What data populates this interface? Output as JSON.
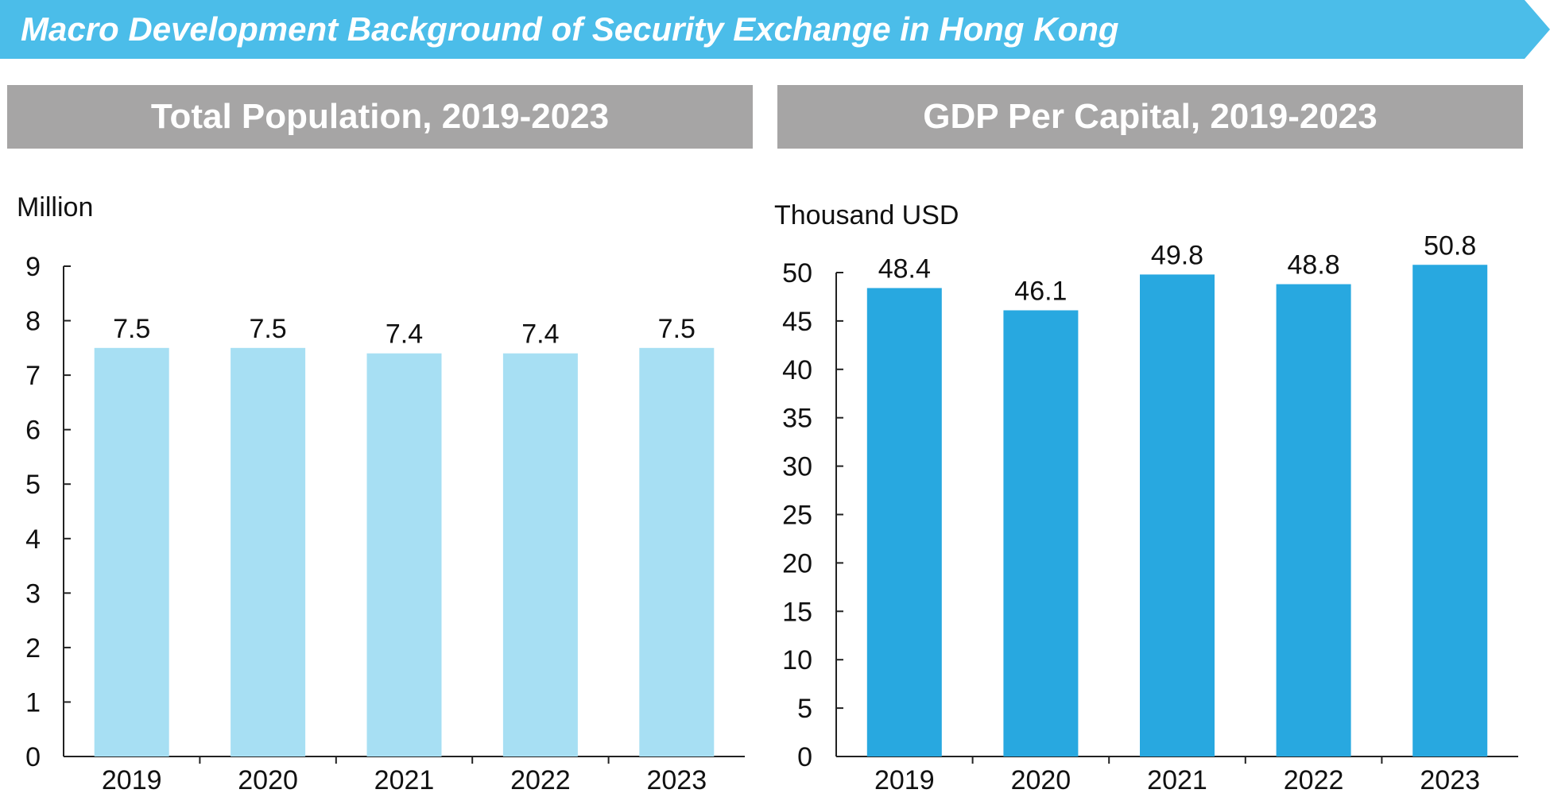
{
  "header": {
    "title": "Macro Development Background of Security Exchange in Hong Kong",
    "color": "#4bbde9"
  },
  "panels": {
    "left_title": "Total Population, 2019-2023",
    "right_title": "GDP Per Capital, 2019-2023",
    "header_color": "#a6a5a5"
  },
  "chart_data": [
    {
      "type": "bar",
      "title": "Total Population, 2019-2023",
      "ylabel": "Million",
      "xlabel": "",
      "categories": [
        "2019",
        "2020",
        "2021",
        "2022",
        "2023"
      ],
      "values": [
        7.5,
        7.5,
        7.4,
        7.4,
        7.5
      ],
      "value_labels": [
        "7.5",
        "7.5",
        "7.4",
        "7.4",
        "7.5"
      ],
      "ylim": [
        0,
        9
      ],
      "yticks": [
        0,
        1,
        2,
        3,
        4,
        5,
        6,
        7,
        8,
        9
      ],
      "grid": false,
      "bar_color": "#a7dff3"
    },
    {
      "type": "bar",
      "title": "GDP Per Capital, 2019-2023",
      "ylabel": "Thousand USD",
      "xlabel": "",
      "categories": [
        "2019",
        "2020",
        "2021",
        "2022",
        "2023"
      ],
      "values": [
        48.4,
        46.1,
        49.8,
        48.8,
        50.8
      ],
      "value_labels": [
        "48.4",
        "46.1",
        "49.8",
        "48.8",
        "50.8"
      ],
      "ylim": [
        0,
        50
      ],
      "yticks": [
        0,
        5,
        10,
        15,
        20,
        25,
        30,
        35,
        40,
        45,
        50
      ],
      "grid": false,
      "bar_color": "#28a8e0"
    }
  ]
}
